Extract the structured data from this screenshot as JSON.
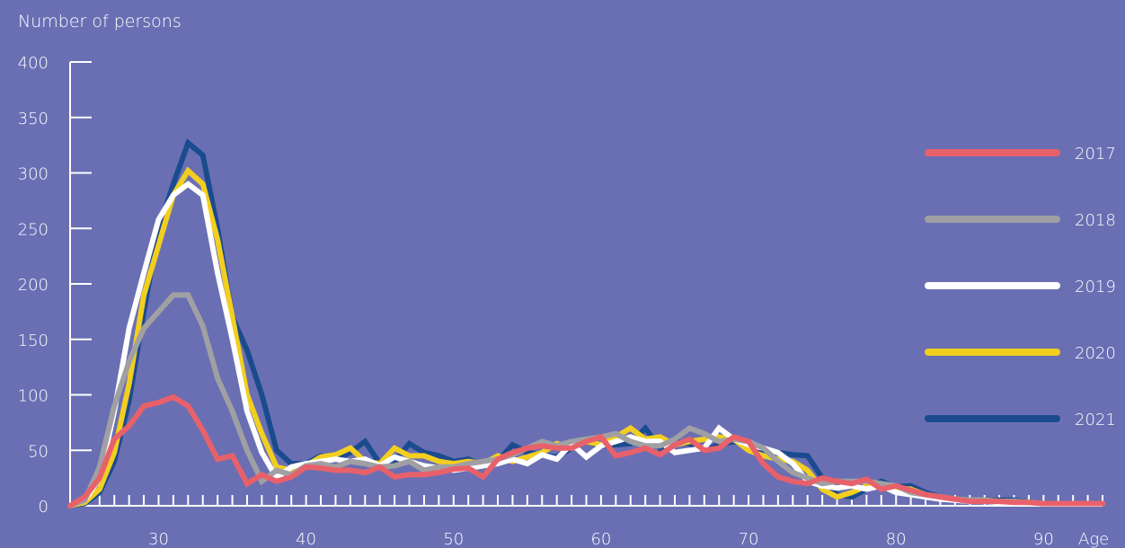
{
  "chart_data": {
    "type": "line",
    "title": "",
    "ylabel": "Number of persons",
    "xlabel": "Age",
    "xlim": [
      24,
      94
    ],
    "ylim": [
      0,
      400
    ],
    "x_ticks": [
      30,
      40,
      50,
      60,
      70,
      80,
      90
    ],
    "y_ticks": [
      0,
      50,
      100,
      150,
      200,
      250,
      300,
      350,
      400
    ],
    "legend_position": "right",
    "x": [
      24,
      25,
      26,
      27,
      28,
      29,
      30,
      31,
      32,
      33,
      34,
      35,
      36,
      37,
      38,
      39,
      40,
      41,
      42,
      43,
      44,
      45,
      46,
      47,
      48,
      49,
      50,
      51,
      52,
      53,
      54,
      55,
      56,
      57,
      58,
      59,
      60,
      61,
      62,
      63,
      64,
      65,
      66,
      67,
      68,
      69,
      70,
      71,
      72,
      73,
      74,
      75,
      76,
      77,
      78,
      79,
      80,
      81,
      82,
      83,
      84,
      85,
      86,
      87,
      88,
      89,
      90,
      91,
      92,
      93,
      94
    ],
    "series": [
      {
        "name": "2021",
        "color": "#1b4b8f",
        "values": [
          0,
          2,
          12,
          40,
          95,
          175,
          250,
          290,
          327,
          316,
          250,
          170,
          140,
          100,
          50,
          38,
          38,
          45,
          42,
          48,
          58,
          38,
          40,
          56,
          48,
          45,
          40,
          42,
          36,
          40,
          55,
          48,
          46,
          44,
          52,
          58,
          54,
          55,
          56,
          70,
          52,
          58,
          56,
          50,
          55,
          58,
          54,
          50,
          48,
          46,
          45,
          25,
          10,
          8,
          15,
          22,
          17,
          18,
          12,
          8,
          6,
          5,
          5,
          5,
          5,
          3,
          2,
          2,
          2,
          2,
          2
        ]
      },
      {
        "name": "2020",
        "color": "#f2cf1f",
        "values": [
          0,
          3,
          15,
          48,
          110,
          190,
          235,
          280,
          302,
          290,
          240,
          170,
          100,
          65,
          35,
          32,
          36,
          44,
          46,
          52,
          40,
          38,
          52,
          45,
          45,
          40,
          38,
          40,
          38,
          45,
          40,
          44,
          48,
          56,
          52,
          58,
          55,
          62,
          70,
          60,
          62,
          55,
          58,
          60,
          62,
          60,
          50,
          45,
          42,
          40,
          32,
          15,
          8,
          12,
          18,
          20,
          16,
          15,
          10,
          8,
          6,
          5,
          5,
          4,
          4,
          3,
          2,
          2,
          2,
          2,
          2
        ]
      },
      {
        "name": "2019",
        "color": "#ffffff",
        "values": [
          0,
          5,
          25,
          85,
          160,
          210,
          258,
          280,
          290,
          280,
          210,
          150,
          85,
          48,
          25,
          35,
          38,
          40,
          42,
          40,
          42,
          36,
          44,
          40,
          36,
          34,
          32,
          34,
          36,
          38,
          42,
          38,
          46,
          42,
          56,
          44,
          54,
          58,
          62,
          58,
          58,
          48,
          50,
          52,
          70,
          60,
          55,
          52,
          48,
          38,
          22,
          18,
          16,
          18,
          15,
          18,
          12,
          10,
          8,
          6,
          5,
          4,
          4,
          3,
          3,
          2,
          2,
          2,
          2,
          2,
          2
        ]
      },
      {
        "name": "2018",
        "color": "#a0a0a4",
        "values": [
          0,
          5,
          35,
          90,
          130,
          160,
          175,
          190,
          190,
          162,
          115,
          85,
          50,
          22,
          32,
          28,
          36,
          38,
          35,
          40,
          38,
          35,
          36,
          40,
          32,
          35,
          35,
          38,
          40,
          42,
          46,
          52,
          58,
          54,
          58,
          60,
          62,
          65,
          58,
          54,
          54,
          60,
          70,
          65,
          58,
          60,
          58,
          52,
          40,
          30,
          25,
          20,
          22,
          22,
          22,
          20,
          18,
          12,
          10,
          8,
          6,
          5,
          5,
          4,
          4,
          3,
          2,
          2,
          2,
          2,
          2
        ]
      },
      {
        "name": "2017",
        "color": "#e8616a",
        "values": [
          0,
          8,
          25,
          60,
          72,
          90,
          93,
          98,
          90,
          68,
          42,
          45,
          20,
          28,
          22,
          26,
          35,
          34,
          32,
          32,
          30,
          35,
          26,
          28,
          28,
          30,
          33,
          34,
          26,
          42,
          48,
          52,
          54,
          52,
          52,
          58,
          62,
          45,
          48,
          52,
          46,
          55,
          60,
          50,
          52,
          62,
          58,
          38,
          26,
          22,
          20,
          25,
          22,
          20,
          24,
          15,
          18,
          14,
          10,
          8,
          6,
          4,
          4,
          4,
          3,
          3,
          2,
          2,
          2,
          2,
          2
        ]
      }
    ]
  }
}
